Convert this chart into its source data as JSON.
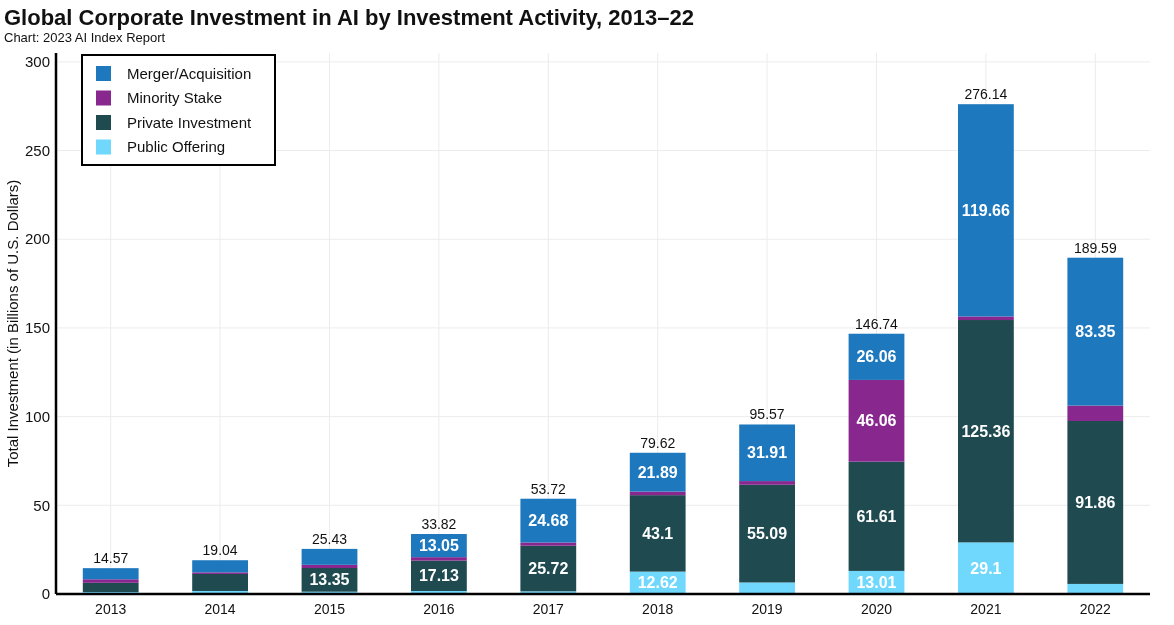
{
  "chart_data": {
    "type": "bar",
    "title": "Global Corporate Investment in AI by Investment Activity, 2013–22",
    "subtitle": "Chart: 2023 AI Index Report",
    "ylabel": "Total Investment (in Billions of U.S. Dollars)",
    "categories": [
      "2013",
      "2014",
      "2015",
      "2016",
      "2017",
      "2018",
      "2019",
      "2020",
      "2021",
      "2022"
    ],
    "series": [
      {
        "name": "Public Offering",
        "color": "#70d8fd",
        "values": [
          1.1,
          1.7,
          1.3,
          1.7,
          1.5,
          12.62,
          6.5,
          13.01,
          29.1,
          5.68
        ],
        "value_labels": [
          null,
          null,
          null,
          null,
          null,
          "12.62",
          null,
          "13.01",
          "29.1",
          null
        ]
      },
      {
        "name": "Private Investment",
        "color": "#1f4a50",
        "values": [
          5.2,
          9.6,
          13.35,
          17.13,
          25.72,
          43.1,
          55.09,
          61.61,
          125.36,
          91.86
        ],
        "value_labels": [
          null,
          null,
          "13.35",
          "17.13",
          "25.72",
          "43.1",
          "55.09",
          "61.61",
          "125.36",
          "91.86"
        ]
      },
      {
        "name": "Minority Stake",
        "color": "#88288f",
        "values": [
          2.0,
          0.9,
          1.8,
          1.94,
          1.82,
          2.01,
          2.07,
          46.06,
          2.02,
          8.7
        ],
        "value_labels": [
          null,
          null,
          null,
          null,
          null,
          null,
          null,
          "46.06",
          null,
          null
        ]
      },
      {
        "name": "Merger/Acquisition",
        "color": "#1e78be",
        "values": [
          6.27,
          6.84,
          8.98,
          13.05,
          24.68,
          21.89,
          31.91,
          26.06,
          119.66,
          83.35
        ],
        "value_labels": [
          null,
          null,
          null,
          "13.05",
          "24.68",
          "21.89",
          "31.91",
          "26.06",
          "119.66",
          "83.35"
        ]
      }
    ],
    "totals": [
      "14.57",
      "19.04",
      "25.43",
      "33.82",
      "53.72",
      "79.62",
      "95.57",
      "146.74",
      "276.14",
      "189.59"
    ],
    "stacked": true,
    "ylim": [
      0,
      305
    ],
    "yticks": [
      0,
      50,
      100,
      150,
      200,
      250,
      300
    ],
    "grid": true,
    "legend": "top left"
  }
}
